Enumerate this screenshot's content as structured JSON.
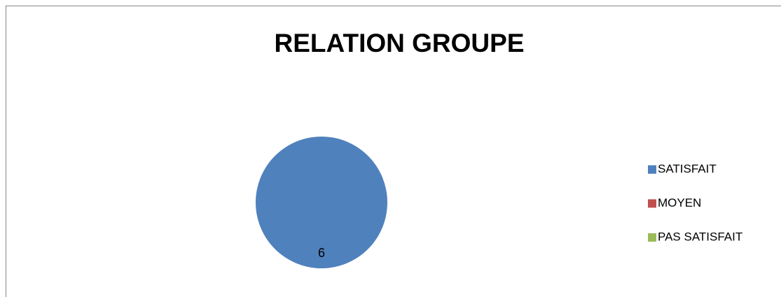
{
  "chart_data": {
    "type": "pie",
    "title": "RELATION GROUPE",
    "categories": [
      "SATISFAIT",
      "MOYEN",
      "PAS SATISFAIT"
    ],
    "values": [
      6,
      0,
      0
    ],
    "colors": [
      "#4f81bd",
      "#c0504d",
      "#9bbb59"
    ],
    "legend": "right"
  }
}
